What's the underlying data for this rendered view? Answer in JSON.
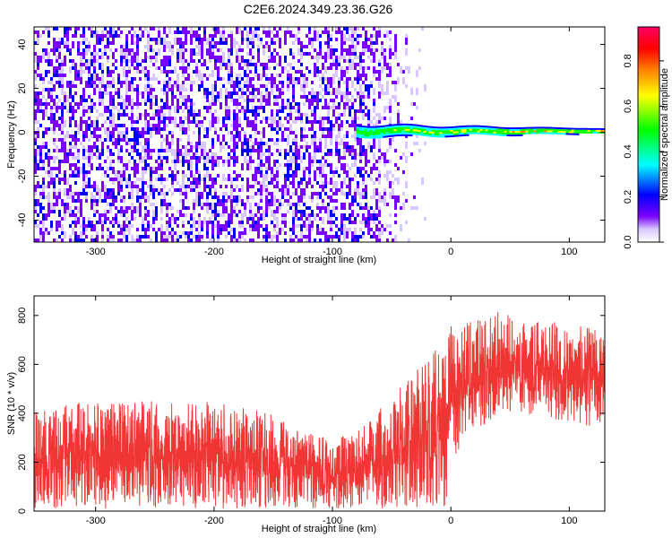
{
  "title": "C2E6.2024.349.23.36.G26",
  "chart_data": [
    {
      "type": "heatmap",
      "title": "C2E6.2024.349.23.36.G26",
      "xlabel": "Height of straight line (km)",
      "ylabel": "Frequency (Hz)",
      "xlim": [
        -352,
        130
      ],
      "ylim": [
        -50,
        48
      ],
      "xticks": [
        -300,
        -200,
        -100,
        0,
        100
      ],
      "yticks": [
        -40,
        -20,
        0,
        20,
        40
      ],
      "colorbar": {
        "label": "Normalized spectral amplitude",
        "range": [
          0.0,
          0.95
        ],
        "ticks": [
          0.0,
          0.2,
          0.4,
          0.6,
          0.8
        ],
        "colormap": [
          "#ffffff",
          "#7a00ff",
          "#0000ff",
          "#00ffff",
          "#00ff00",
          "#ffff00",
          "#ff8000",
          "#ff0000",
          "#ff0066"
        ]
      },
      "description_values": {
        "noise_region_x": [
          -352,
          -75
        ],
        "noise_amplitude": [
          0.0,
          0.25
        ],
        "signal_line_x": [
          -80,
          130
        ],
        "signal_line_frequency": 0,
        "signal_amplitude": [
          0.3,
          0.95
        ]
      },
      "grid": false
    },
    {
      "type": "line",
      "xlabel": "Height of straight line (km)",
      "ylabel": "SNR (10 * v/v)",
      "xlim": [
        -352,
        130
      ],
      "ylim": [
        0,
        880
      ],
      "xticks": [
        -300,
        -200,
        -100,
        0,
        100
      ],
      "yticks": [
        0,
        200,
        400,
        600,
        800
      ],
      "color": "#f03535",
      "envelope": {
        "x": [
          -352,
          -300,
          -250,
          -200,
          -150,
          -120,
          -100,
          -80,
          -60,
          -40,
          -20,
          -5,
          0,
          20,
          40,
          60,
          80,
          100,
          130
        ],
        "min": [
          10,
          10,
          10,
          10,
          10,
          10,
          10,
          10,
          10,
          10,
          10,
          5,
          200,
          320,
          400,
          400,
          380,
          360,
          330
        ],
        "max": [
          420,
          450,
          450,
          450,
          400,
          320,
          300,
          320,
          420,
          520,
          620,
          720,
          760,
          780,
          820,
          800,
          780,
          760,
          750
        ]
      },
      "grid": false
    }
  ]
}
